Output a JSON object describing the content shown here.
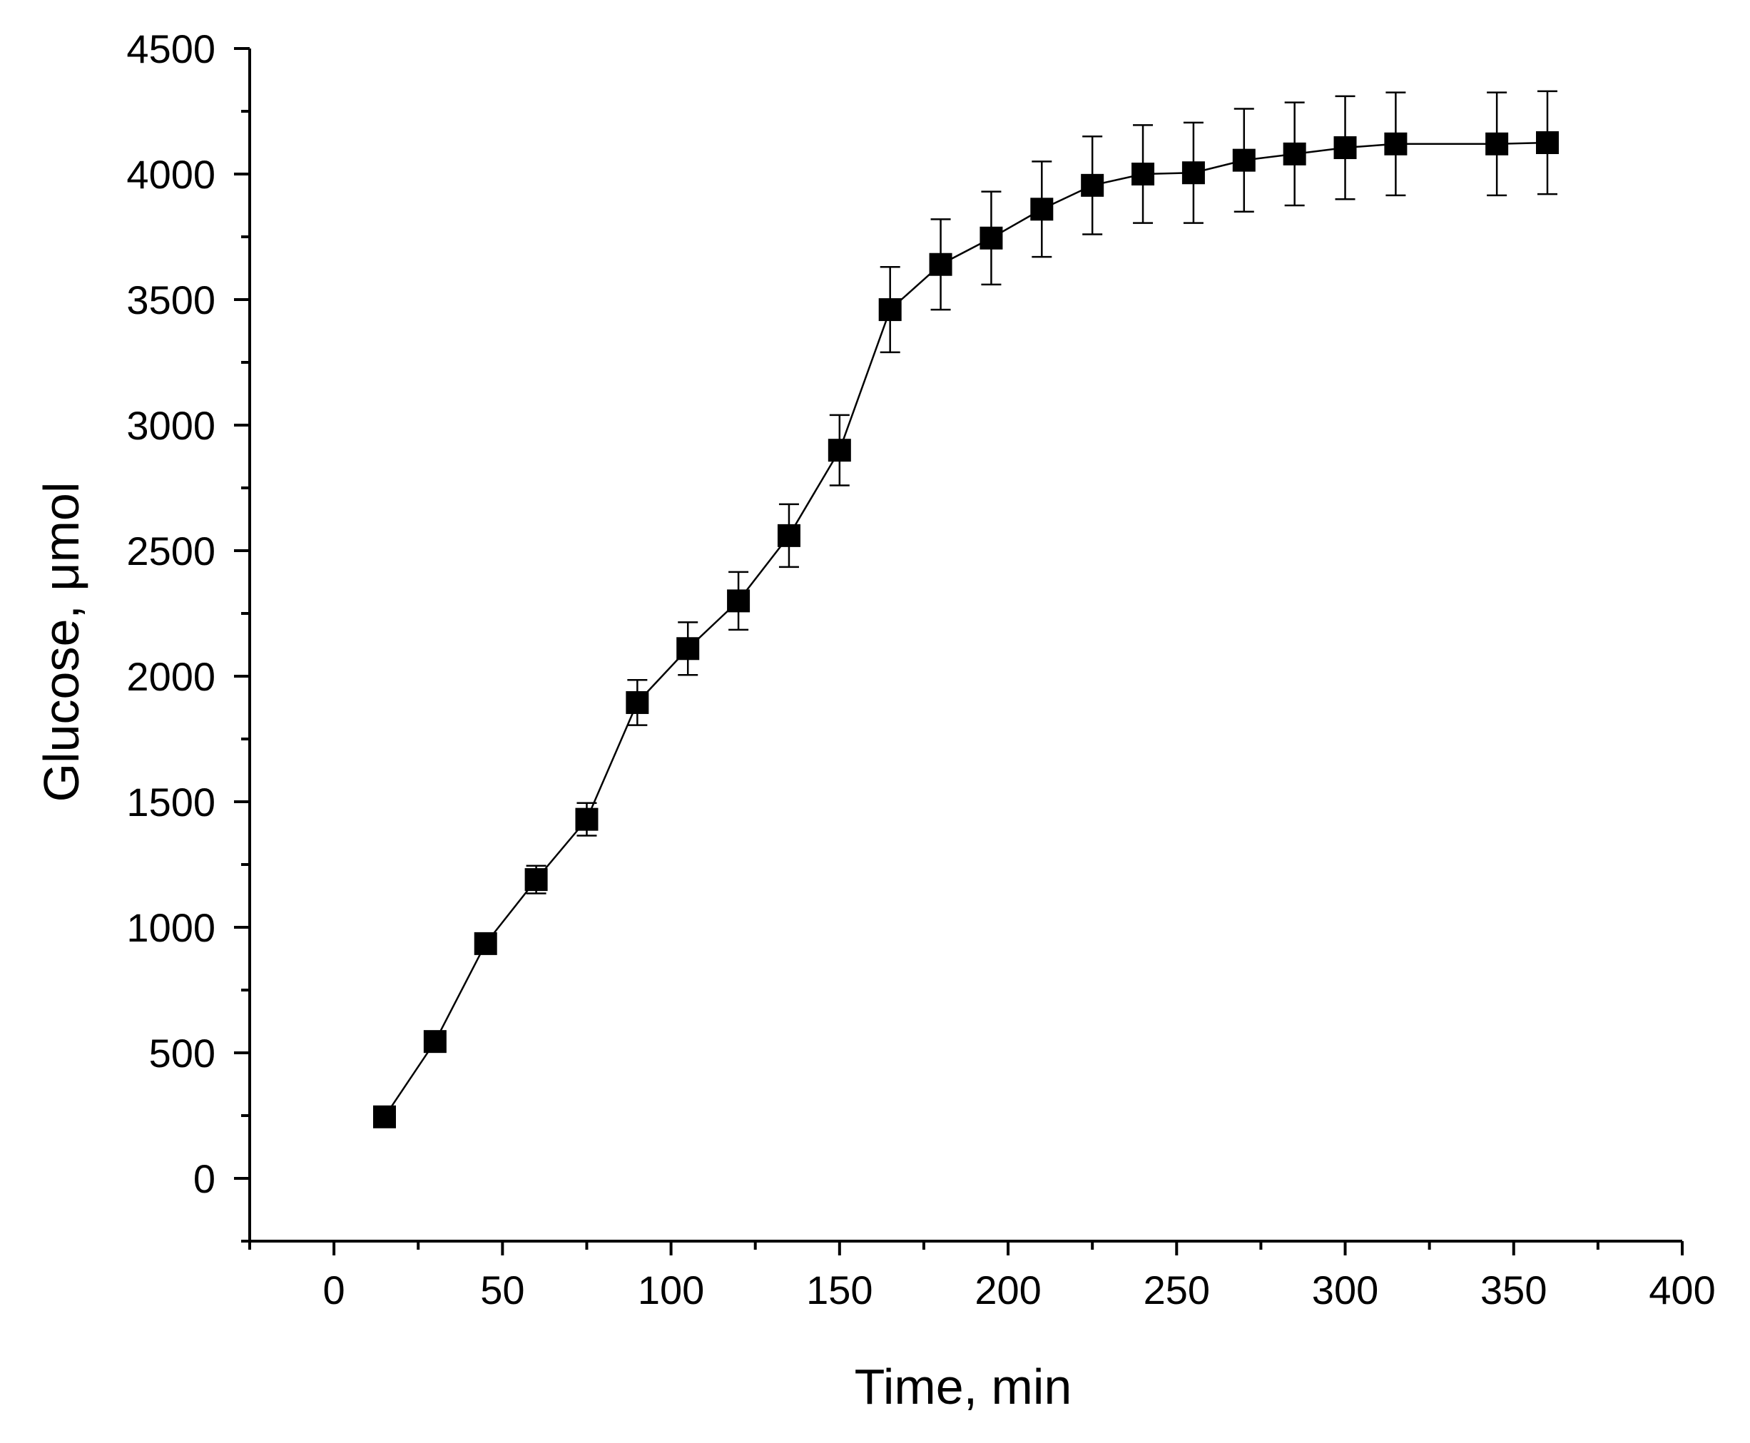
{
  "chart_data": {
    "type": "scatter",
    "title": "",
    "xlabel": "Time, min",
    "ylabel": "Glucose, μmol",
    "xlim": [
      -25,
      400
    ],
    "ylim": [
      -250,
      4500
    ],
    "xticks": [
      0,
      50,
      100,
      150,
      200,
      250,
      300,
      350,
      400
    ],
    "yticks": [
      0,
      500,
      1000,
      1500,
      2000,
      2500,
      3000,
      3500,
      4000,
      4500
    ],
    "xtick_labels": [
      "0",
      "50",
      "100",
      "150",
      "200",
      "250",
      "300",
      "350",
      "400"
    ],
    "ytick_labels": [
      "0",
      "500",
      "1000",
      "1500",
      "2000",
      "2500",
      "3000",
      "3500",
      "4000",
      "4500"
    ],
    "grid": false,
    "legend": "none",
    "marker": "square",
    "connected": true,
    "color": "#000000",
    "series": [
      {
        "x": [
          15,
          30,
          45,
          60,
          75,
          90,
          105,
          120,
          135,
          150,
          165,
          180,
          195,
          210,
          225,
          240,
          255,
          270,
          285,
          300,
          315,
          345,
          360
        ],
        "y": [
          245,
          545,
          935,
          1190,
          1430,
          1895,
          2110,
          2300,
          2560,
          2900,
          3460,
          3640,
          3745,
          3860,
          3955,
          4000,
          4005,
          4055,
          4080,
          4105,
          4120,
          4120,
          4125
        ],
        "error": [
          0,
          0,
          0,
          55,
          65,
          90,
          105,
          115,
          125,
          140,
          170,
          180,
          185,
          190,
          195,
          195,
          200,
          205,
          205,
          205,
          205,
          205,
          205
        ]
      }
    ]
  }
}
